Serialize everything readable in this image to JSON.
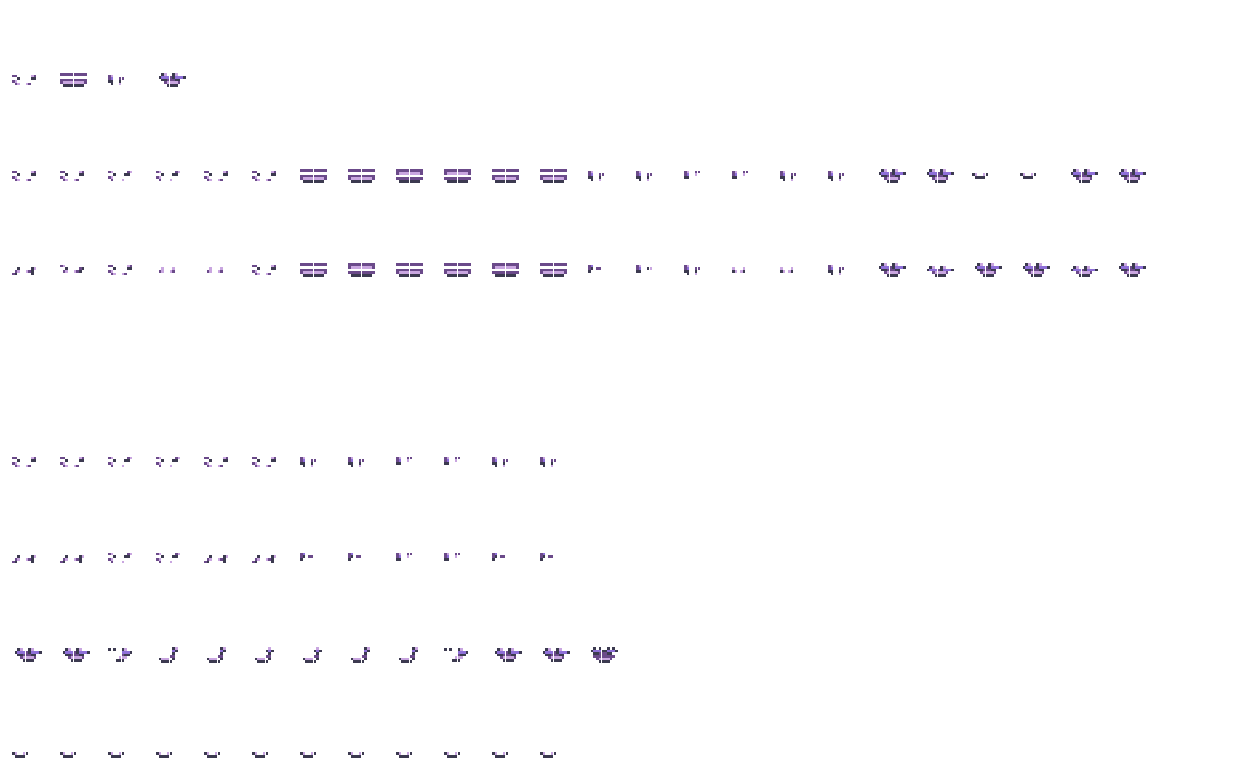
{
  "palette": {
    "a": "#3c3a50",
    "p": "#6b4a8a",
    "l": "#c9a6e0",
    "v": "#8e6fd8"
  },
  "sprite_rows": [
    [
      "split",
      "bars",
      "side",
      "grin"
    ],
    [
      "split",
      "split",
      "split-up",
      "split-up",
      "split",
      "split",
      "bars",
      "bars",
      "bars-up",
      "bars-up",
      "bars",
      "bars",
      "side",
      "side",
      "side-up",
      "side-up",
      "side",
      "side",
      "grin",
      "grin",
      "grin-up",
      "grin-up",
      "grin",
      "grin"
    ],
    [
      "split-alt",
      "split-alt2",
      "split",
      "split-faint",
      "split-faint",
      "split",
      "bars",
      "bars-up",
      "bars",
      "bars",
      "bars-up",
      "bars",
      "side-alt",
      "side-alt2",
      "side",
      "side-faint",
      "side-faint",
      "side",
      "grin",
      "grin-low",
      "grin",
      "grin",
      "grin-low",
      "grin"
    ],
    [
      "split",
      "split",
      "split-up",
      "split-up",
      "split",
      "split",
      "side",
      "side",
      "side-up",
      "side-up",
      "side",
      "side"
    ],
    [
      "split-alt",
      "split-alt",
      "split-up",
      "split-up",
      "split-alt",
      "split-alt",
      "side-alt",
      "side-alt",
      "side-up",
      "side-up",
      "side-alt",
      "side-alt"
    ],
    [
      "grin",
      "grin",
      "half-grin",
      "smile",
      "smile",
      "smile-up",
      "smile-up",
      "smile",
      "smile",
      "half-grin",
      "grin",
      "grin",
      "big-grin"
    ],
    [
      "small",
      "small",
      "small",
      "small",
      "small",
      "small",
      "small",
      "small",
      "small",
      "small",
      "small",
      "small"
    ]
  ]
}
